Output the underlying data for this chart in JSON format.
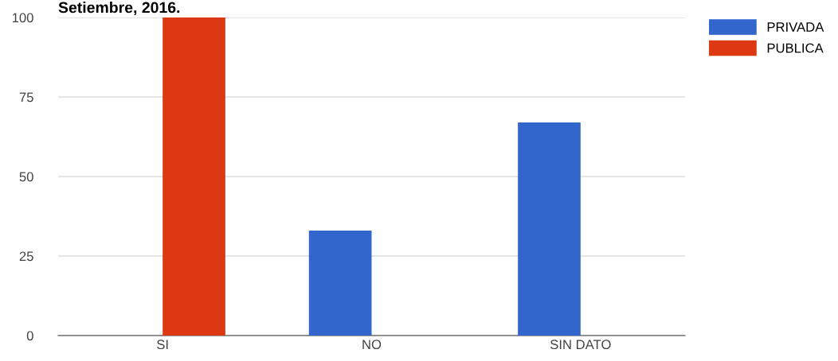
{
  "chart_data": {
    "type": "bar",
    "title": "Setiembre, 2016.",
    "categories": [
      "SI",
      "NO",
      "SIN DATO"
    ],
    "series": [
      {
        "name": "PRIVADA",
        "color": "#3366cc",
        "values": [
          0,
          33,
          67
        ]
      },
      {
        "name": "PUBLICA",
        "color": "#dc3912",
        "values": [
          100,
          0,
          0
        ]
      }
    ],
    "ylim": [
      0,
      100
    ],
    "yticks": [
      0,
      25,
      50,
      75,
      100
    ],
    "grid": "y",
    "legend": "top right"
  }
}
